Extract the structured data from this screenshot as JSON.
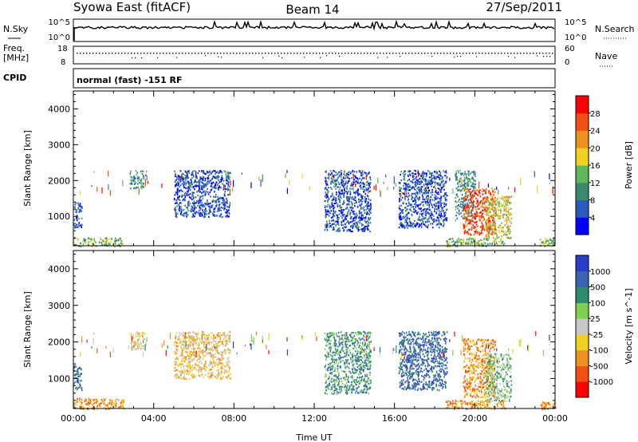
{
  "header": {
    "station": "Syowa East (fitACF)",
    "beam": "Beam 14",
    "date": "27/Sep/2011"
  },
  "summary": {
    "nsky_label": "N.Sky",
    "nsearch_label": "N.Search",
    "freq_label": "Freq.",
    "freq_unit": "[MHz]",
    "nave_label": "Nave",
    "cpid_label": "CPID",
    "cpid_text": "normal (fast) -151 RF",
    "noise_ticks_left": [
      "10^5",
      "10^0"
    ],
    "noise_ticks_right": [
      "10^5",
      "10^0"
    ],
    "freq_ticks": [
      "18",
      "8"
    ],
    "nave_ticks": [
      "60",
      "0"
    ]
  },
  "chart_data": [
    {
      "type": "heatmap",
      "name": "power-panel",
      "ylabel": "Slant Range [km]",
      "xlabel": "",
      "x_ticks": [
        "00:00",
        "04:00",
        "08:00",
        "12:00",
        "16:00",
        "20:00",
        "00:00"
      ],
      "x_range_hours": [
        0,
        24
      ],
      "y_ticks": [
        1000,
        2000,
        3000,
        4000
      ],
      "ylim": [
        180,
        4500
      ],
      "colorbar": {
        "label": "Power [dB]",
        "ticks": [
          "4",
          "8",
          "12",
          "16",
          "20",
          "24",
          "28"
        ],
        "colors": [
          "#0000ff",
          "#2a5abf",
          "#3a8a70",
          "#5fb85a",
          "#f0d020",
          "#f09020",
          "#f05010",
          "#ff0000"
        ]
      },
      "echo_regions": [
        {
          "t_start": 0.0,
          "t_end": 0.4,
          "r_start": 700,
          "r_end": 1400,
          "level": 1
        },
        {
          "t_start": 0.0,
          "t_end": 2.5,
          "r_start": 180,
          "r_end": 420,
          "level": 3
        },
        {
          "t_start": 2.8,
          "t_end": 3.5,
          "r_start": 1800,
          "r_end": 2300,
          "level": 2
        },
        {
          "t_start": 5.0,
          "t_end": 7.8,
          "r_start": 1000,
          "r_end": 2300,
          "level": 1
        },
        {
          "t_start": 12.5,
          "t_end": 14.8,
          "r_start": 600,
          "r_end": 2300,
          "level": 1
        },
        {
          "t_start": 16.2,
          "t_end": 18.6,
          "r_start": 700,
          "r_end": 2300,
          "level": 1
        },
        {
          "t_start": 19.0,
          "t_end": 20.0,
          "r_start": 900,
          "r_end": 2300,
          "level": 2
        },
        {
          "t_start": 19.4,
          "t_end": 21.0,
          "r_start": 500,
          "r_end": 1800,
          "level": 6
        },
        {
          "t_start": 20.5,
          "t_end": 21.8,
          "r_start": 400,
          "r_end": 1600,
          "level": 4
        },
        {
          "t_start": 18.5,
          "t_end": 21.5,
          "r_start": 180,
          "r_end": 420,
          "level": 3
        },
        {
          "t_start": 23.2,
          "t_end": 24.0,
          "r_start": 180,
          "r_end": 400,
          "level": 3
        }
      ]
    },
    {
      "type": "heatmap",
      "name": "velocity-panel",
      "ylabel": "Slant Range [km]",
      "xlabel": "Time UT",
      "x_ticks": [
        "00:00",
        "04:00",
        "08:00",
        "12:00",
        "16:00",
        "20:00",
        "00:00"
      ],
      "x_range_hours": [
        0,
        24
      ],
      "y_ticks": [
        1000,
        2000,
        3000,
        4000
      ],
      "ylim": [
        180,
        4500
      ],
      "colorbar": {
        "label": "Velocity [m s^-1]",
        "ticks": [
          "1000",
          "500",
          "100",
          "25",
          "-25",
          "-100",
          "-500",
          "-1000"
        ],
        "colors": [
          "#2a3cc8",
          "#3a64b0",
          "#2e8a70",
          "#7fd050",
          "#c8c8c8",
          "#f0d020",
          "#f09020",
          "#f05010",
          "#ff0000"
        ]
      },
      "echo_regions": [
        {
          "t_start": 0.0,
          "t_end": 0.4,
          "r_start": 700,
          "r_end": 1400,
          "level": 1
        },
        {
          "t_start": 0.0,
          "t_end": 2.5,
          "r_start": 180,
          "r_end": 480,
          "level": 6
        },
        {
          "t_start": 2.8,
          "t_end": 3.5,
          "r_start": 1800,
          "r_end": 2300,
          "level": 5
        },
        {
          "t_start": 5.0,
          "t_end": 7.8,
          "r_start": 1000,
          "r_end": 2300,
          "level": 5
        },
        {
          "t_start": 12.5,
          "t_end": 14.8,
          "r_start": 600,
          "r_end": 2300,
          "level": 2
        },
        {
          "t_start": 16.2,
          "t_end": 18.6,
          "r_start": 700,
          "r_end": 2300,
          "level": 1
        },
        {
          "t_start": 19.4,
          "t_end": 21.0,
          "r_start": 500,
          "r_end": 2100,
          "level": 6
        },
        {
          "t_start": 20.5,
          "t_end": 21.8,
          "r_start": 400,
          "r_end": 1700,
          "level": 3
        },
        {
          "t_start": 18.5,
          "t_end": 21.5,
          "r_start": 180,
          "r_end": 420,
          "level": 6
        },
        {
          "t_start": 23.2,
          "t_end": 24.0,
          "r_start": 180,
          "r_end": 400,
          "level": 6
        }
      ]
    }
  ]
}
